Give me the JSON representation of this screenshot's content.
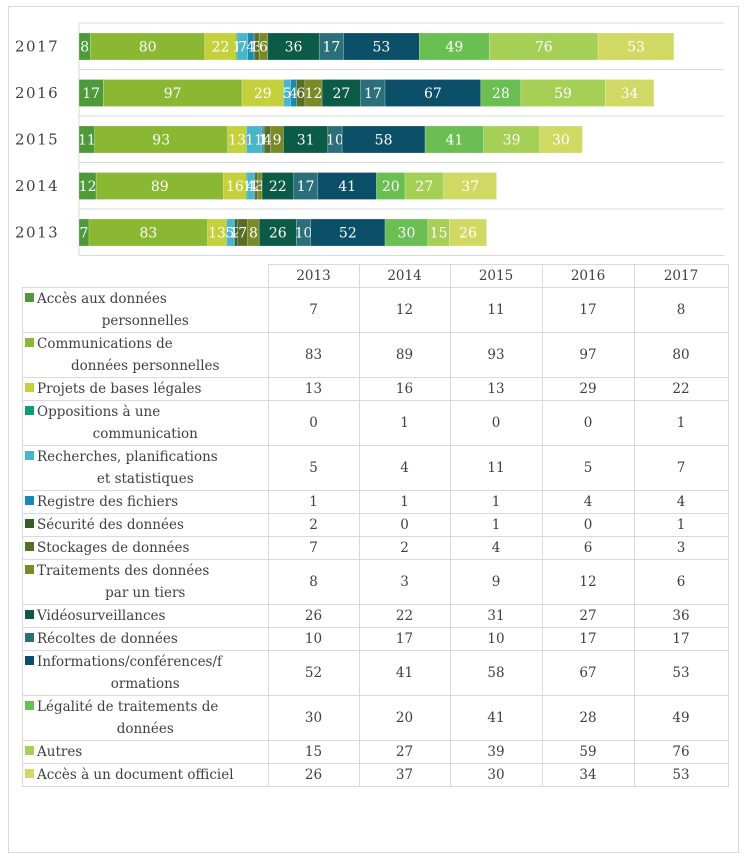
{
  "chart_data": {
    "type": "bar",
    "orientation": "horizontal",
    "stacked": true,
    "title": "",
    "xlabel": "",
    "ylabel": "",
    "categories": [
      "2017",
      "2016",
      "2015",
      "2014",
      "2013"
    ],
    "table_years": [
      "2013",
      "2014",
      "2015",
      "2016",
      "2017"
    ],
    "grid": false,
    "legend": "table-below",
    "series": [
      {
        "name": "Accès aux données personnelles",
        "color": "#4e9a3a",
        "values": {
          "2013": 7,
          "2014": 12,
          "2015": 11,
          "2016": 17,
          "2017": 8
        }
      },
      {
        "name": "Communications de données personnelles",
        "color": "#8ab833",
        "values": {
          "2013": 83,
          "2014": 89,
          "2015": 93,
          "2016": 97,
          "2017": 80
        }
      },
      {
        "name": "Projets de bases légales",
        "color": "#c5d13c",
        "values": {
          "2013": 13,
          "2014": 16,
          "2015": 13,
          "2016": 29,
          "2017": 22
        }
      },
      {
        "name": "Oppositions à une communication",
        "color": "#0f9a7a",
        "values": {
          "2013": 0,
          "2014": 1,
          "2015": 0,
          "2016": 0,
          "2017": 1
        }
      },
      {
        "name": "Recherches, planifications et statistiques",
        "color": "#4ab5c9",
        "values": {
          "2013": 5,
          "2014": 4,
          "2015": 11,
          "2016": 5,
          "2017": 7
        }
      },
      {
        "name": "Registre des fichiers",
        "color": "#1688b9",
        "values": {
          "2013": 1,
          "2014": 1,
          "2015": 1,
          "2016": 4,
          "2017": 4
        }
      },
      {
        "name": "Sécurité des données",
        "color": "#355e2a",
        "values": {
          "2013": 2,
          "2014": 0,
          "2015": 1,
          "2016": 0,
          "2017": 1
        }
      },
      {
        "name": "Stockages de données",
        "color": "#566f24",
        "values": {
          "2013": 7,
          "2014": 2,
          "2015": 4,
          "2016": 6,
          "2017": 3
        }
      },
      {
        "name": "Traitements des données par un tiers",
        "color": "#7a8a26",
        "values": {
          "2013": 8,
          "2014": 3,
          "2015": 9,
          "2016": 12,
          "2017": 6
        }
      },
      {
        "name": "Vidéosurveillances",
        "color": "#0b5b47",
        "values": {
          "2013": 26,
          "2014": 22,
          "2015": 31,
          "2016": 27,
          "2017": 36
        }
      },
      {
        "name": "Récoltes de données",
        "color": "#2b6f7a",
        "values": {
          "2013": 10,
          "2014": 17,
          "2015": 10,
          "2016": 17,
          "2017": 17
        }
      },
      {
        "name": "Informations/conférences/formations",
        "color": "#0b5068",
        "values": {
          "2013": 52,
          "2014": 41,
          "2015": 58,
          "2016": 67,
          "2017": 53
        }
      },
      {
        "name": "Légalité de traitements de données",
        "color": "#6bbf52",
        "values": {
          "2013": 30,
          "2014": 20,
          "2015": 41,
          "2016": 28,
          "2017": 49
        }
      },
      {
        "name": "Autres",
        "color": "#a6cf56",
        "values": {
          "2013": 15,
          "2014": 27,
          "2015": 39,
          "2016": 59,
          "2017": 76
        }
      },
      {
        "name": "Accès à un document officiel",
        "color": "#cfd964",
        "values": {
          "2013": 26,
          "2014": 37,
          "2015": 30,
          "2016": 34,
          "2017": 53
        }
      }
    ]
  },
  "table": {
    "legend_labels": [
      [
        "Accès aux données",
        "personnelles"
      ],
      [
        "Communications de",
        "données personnelles"
      ],
      [
        "Projets de bases légales"
      ],
      [
        "Oppositions à une",
        "communication"
      ],
      [
        "Recherches, planifications",
        "et statistiques"
      ],
      [
        "Registre des fichiers"
      ],
      [
        "Sécurité des données"
      ],
      [
        "Stockages de données"
      ],
      [
        "Traitements des données",
        "par un tiers"
      ],
      [
        "Vidéosurveillances"
      ],
      [
        "Récoltes de données"
      ],
      [
        "Informations/conférences/f",
        "ormations"
      ],
      [
        "Légalité de traitements de",
        "données"
      ],
      [
        "Autres"
      ],
      [
        "Accès à un document officiel"
      ]
    ]
  }
}
